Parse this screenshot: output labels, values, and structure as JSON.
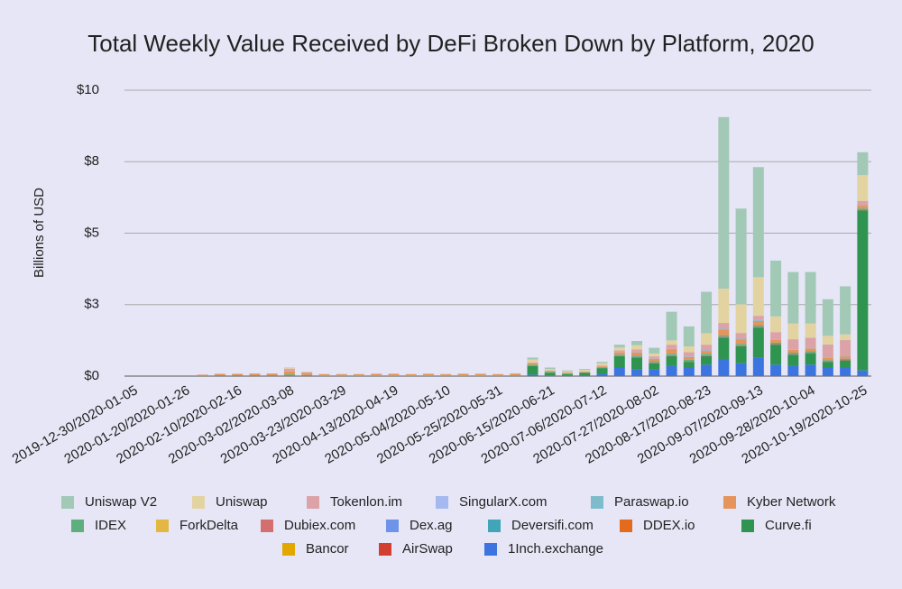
{
  "chart_data": {
    "type": "stacked_bar",
    "title": "Total Weekly Value Received by DeFi Broken Down by Platform, 2020",
    "y_label": "Billions of USD",
    "categories": [
      "2019-12-30/2020-01-05",
      null,
      null,
      "2020-01-20/2020-01-26",
      null,
      null,
      "2020-02-10/2020-02-16",
      null,
      null,
      "2020-03-02/2020-03-08",
      null,
      null,
      "2020-03-23/2020-03-29",
      null,
      null,
      "2020-04-13/2020-04-19",
      null,
      null,
      "2020-05-04/2020-05-10",
      null,
      null,
      "2020-05-25/2020-05-31",
      null,
      null,
      "2020-06-15/2020-06-21",
      null,
      null,
      "2020-07-06/2020-07-12",
      null,
      null,
      "2020-07-27/2020-08-02",
      null,
      null,
      "2020-08-17/2020-08-23",
      null,
      null,
      "2020-09-07/2020-09-13",
      null,
      null,
      "2020-09-28/2020-10-04",
      null,
      null,
      "2020-10-19/2020-10-25"
    ],
    "ylim": [
      0,
      10
    ],
    "yticks": [
      {
        "value": 0,
        "label": "$0"
      },
      {
        "value": 2.5,
        "label": "$3"
      },
      {
        "value": 5,
        "label": "$5"
      },
      {
        "value": 7.5,
        "label": "$8"
      },
      {
        "value": 10,
        "label": "$10"
      }
    ],
    "grid": true,
    "legend": "bottom",
    "series": [
      {
        "name": "Uniswap V2",
        "color": "#a1c9b6",
        "values": [
          0,
          0,
          0,
          0,
          0,
          0,
          0,
          0,
          0,
          0,
          0,
          0,
          0,
          0,
          0,
          0,
          0,
          0,
          0,
          0,
          0,
          0,
          0,
          0.07,
          0.05,
          0.03,
          0.03,
          0.05,
          0.1,
          0.15,
          0.2,
          1.0,
          0.7,
          1.45,
          6.0,
          3.35,
          3.85,
          1.95,
          1.8,
          1.8,
          1.28,
          1.68,
          0.8
        ]
      },
      {
        "name": "Uniswap",
        "color": "#e3d3a0",
        "values": [
          0,
          0,
          0,
          0,
          0,
          0,
          0,
          0,
          0,
          0.05,
          0.01,
          0.01,
          0.01,
          0.01,
          0.01,
          0.01,
          0.01,
          0.01,
          0.01,
          0.01,
          0.01,
          0.01,
          0.01,
          0.1,
          0.05,
          0.04,
          0.05,
          0.08,
          0.1,
          0.15,
          0.1,
          0.15,
          0.2,
          0.4,
          1.2,
          1.0,
          1.35,
          0.55,
          0.55,
          0.5,
          0.3,
          0.2,
          0.9
        ]
      },
      {
        "name": "Tokenlon.im",
        "color": "#dba3a8",
        "values": [
          0,
          0,
          0,
          0,
          0,
          0,
          0,
          0,
          0,
          0.1,
          0.02,
          0,
          0,
          0,
          0,
          0,
          0,
          0,
          0,
          0,
          0,
          0,
          0,
          0.03,
          0.02,
          0.02,
          0.02,
          0.03,
          0.07,
          0.1,
          0.07,
          0.15,
          0.15,
          0.2,
          0.2,
          0.2,
          0.15,
          0.25,
          0.35,
          0.35,
          0.45,
          0.55,
          0.15
        ]
      },
      {
        "name": "SingularX.com",
        "color": "#a5b8f0",
        "values": [
          0,
          0,
          0,
          0,
          0,
          0,
          0,
          0,
          0,
          0,
          0,
          0,
          0,
          0,
          0,
          0,
          0,
          0,
          0,
          0,
          0,
          0,
          0,
          0,
          0,
          0,
          0,
          0,
          0,
          0,
          0,
          0,
          0,
          0,
          0,
          0,
          0,
          0,
          0,
          0,
          0,
          0,
          0
        ]
      },
      {
        "name": "Paraswap.io",
        "color": "#7fbccb",
        "values": [
          0,
          0,
          0,
          0,
          0,
          0,
          0,
          0,
          0,
          0,
          0,
          0,
          0,
          0,
          0,
          0,
          0,
          0,
          0,
          0,
          0,
          0,
          0,
          0,
          0,
          0,
          0,
          0,
          0,
          0.01,
          0.01,
          0.02,
          0.02,
          0.02,
          0.03,
          0.03,
          0.03,
          0.02,
          0.02,
          0.02,
          0.02,
          0.02,
          0.02
        ]
      },
      {
        "name": "Kyber Network",
        "color": "#e5945c",
        "values": [
          0.02,
          0.02,
          0.02,
          0.02,
          0.03,
          0.05,
          0.05,
          0.06,
          0.06,
          0.1,
          0.08,
          0.05,
          0.05,
          0.05,
          0.06,
          0.06,
          0.05,
          0.06,
          0.05,
          0.06,
          0.06,
          0.05,
          0.06,
          0.05,
          0.03,
          0.02,
          0.02,
          0.03,
          0.08,
          0.1,
          0.08,
          0.15,
          0.1,
          0.1,
          0.2,
          0.15,
          0.15,
          0.1,
          0.1,
          0.1,
          0.08,
          0.08,
          0.1
        ]
      },
      {
        "name": "IDEX",
        "color": "#5fae7d",
        "values": [
          0.01,
          0.01,
          0.01,
          0.01,
          0.01,
          0.02,
          0.02,
          0.02,
          0.02,
          0.05,
          0.03,
          0.02,
          0.02,
          0.02,
          0.02,
          0.02,
          0.02,
          0.02,
          0.02,
          0.02,
          0.02,
          0.02,
          0.03,
          0.05,
          0.03,
          0.02,
          0.02,
          0.03,
          0.05,
          0.05,
          0.05,
          0.05,
          0.05,
          0.05,
          0.05,
          0.05,
          0.05,
          0.05,
          0.05,
          0.05,
          0.04,
          0.04,
          0.04
        ]
      },
      {
        "name": "ForkDelta",
        "color": "#e4b642",
        "values": [
          0,
          0,
          0,
          0,
          0,
          0,
          0,
          0,
          0,
          0,
          0,
          0,
          0,
          0,
          0,
          0,
          0,
          0,
          0,
          0,
          0,
          0,
          0,
          0,
          0,
          0,
          0,
          0,
          0,
          0,
          0,
          0,
          0,
          0,
          0,
          0,
          0,
          0,
          0,
          0,
          0,
          0,
          0
        ]
      },
      {
        "name": "Dubiex.com",
        "color": "#d46f6f",
        "values": [
          0,
          0,
          0,
          0,
          0,
          0,
          0,
          0,
          0,
          0,
          0,
          0,
          0,
          0,
          0,
          0,
          0,
          0,
          0,
          0,
          0,
          0,
          0,
          0,
          0,
          0,
          0,
          0,
          0,
          0.02,
          0.03,
          0.03,
          0.02,
          0.03,
          0.03,
          0.03,
          0.03,
          0.02,
          0.02,
          0.02,
          0.02,
          0.02,
          0.02
        ]
      },
      {
        "name": "Dex.ag",
        "color": "#6d94e8",
        "values": [
          0,
          0,
          0,
          0,
          0,
          0,
          0,
          0,
          0,
          0,
          0,
          0,
          0,
          0,
          0,
          0,
          0,
          0,
          0,
          0,
          0,
          0,
          0,
          0,
          0,
          0,
          0,
          0,
          0,
          0,
          0,
          0,
          0,
          0,
          0,
          0,
          0,
          0,
          0,
          0,
          0,
          0,
          0
        ]
      },
      {
        "name": "Deversifi.com",
        "color": "#3fa5b7",
        "values": [
          0,
          0,
          0,
          0,
          0,
          0,
          0,
          0,
          0,
          0,
          0,
          0,
          0,
          0,
          0,
          0,
          0,
          0,
          0,
          0,
          0,
          0,
          0,
          0,
          0,
          0,
          0,
          0,
          0,
          0,
          0,
          0,
          0,
          0,
          0,
          0,
          0,
          0,
          0,
          0,
          0,
          0,
          0
        ]
      },
      {
        "name": "DDEX.io",
        "color": "#e46a1c",
        "values": [
          0,
          0,
          0,
          0,
          0.01,
          0.01,
          0.01,
          0.01,
          0.01,
          0.01,
          0.01,
          0,
          0,
          0,
          0,
          0,
          0,
          0,
          0,
          0,
          0,
          0,
          0,
          0,
          0,
          0,
          0,
          0,
          0,
          0,
          0,
          0,
          0,
          0,
          0,
          0,
          0,
          0,
          0,
          0,
          0,
          0,
          0
        ]
      },
      {
        "name": "Curve.fi",
        "color": "#2e9450",
        "values": [
          0,
          0,
          0,
          0,
          0,
          0,
          0,
          0,
          0,
          0,
          0,
          0,
          0,
          0,
          0,
          0,
          0,
          0,
          0,
          0,
          0,
          0,
          0,
          0.3,
          0.1,
          0.05,
          0.08,
          0.2,
          0.4,
          0.4,
          0.2,
          0.35,
          0.2,
          0.3,
          0.75,
          0.6,
          1.05,
          0.7,
          0.4,
          0.4,
          0.2,
          0.25,
          5.6
        ]
      },
      {
        "name": "Bancor",
        "color": "#e3a800",
        "values": [
          0,
          0,
          0,
          0,
          0,
          0,
          0,
          0,
          0,
          0,
          0,
          0,
          0,
          0,
          0,
          0,
          0,
          0,
          0,
          0,
          0,
          0,
          0,
          0,
          0,
          0,
          0,
          0,
          0,
          0,
          0,
          0,
          0,
          0,
          0,
          0,
          0,
          0,
          0,
          0,
          0,
          0,
          0
        ]
      },
      {
        "name": "AirSwap",
        "color": "#d23f31",
        "values": [
          0,
          0,
          0,
          0,
          0,
          0,
          0,
          0,
          0,
          0,
          0,
          0,
          0,
          0,
          0,
          0,
          0,
          0,
          0,
          0,
          0,
          0,
          0,
          0,
          0,
          0,
          0,
          0,
          0,
          0,
          0,
          0,
          0,
          0,
          0,
          0,
          0,
          0,
          0,
          0,
          0,
          0,
          0
        ]
      },
      {
        "name": "1Inch.exchange",
        "color": "#3c74e0",
        "values": [
          0,
          0,
          0,
          0,
          0,
          0,
          0,
          0,
          0,
          0,
          0,
          0,
          0,
          0,
          0,
          0,
          0,
          0,
          0,
          0,
          0,
          0,
          0,
          0.05,
          0.02,
          0.02,
          0.03,
          0.08,
          0.3,
          0.25,
          0.25,
          0.35,
          0.3,
          0.4,
          0.6,
          0.45,
          0.65,
          0.4,
          0.35,
          0.4,
          0.3,
          0.3,
          0.2
        ]
      }
    ]
  }
}
